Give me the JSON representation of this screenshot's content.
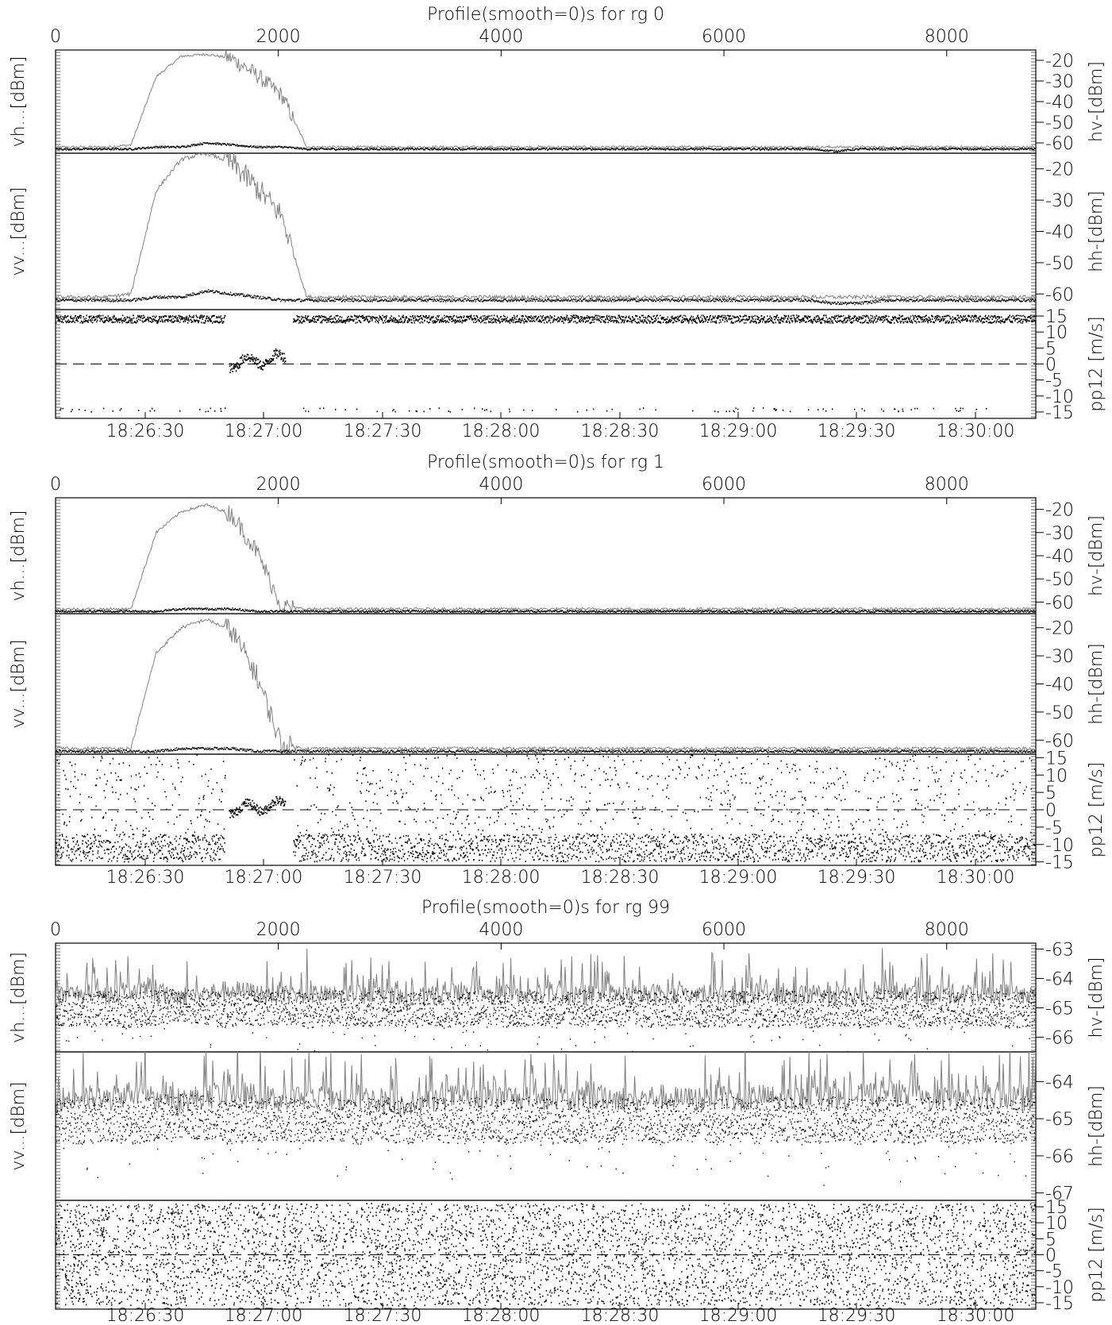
{
  "chart_data": [
    {
      "type": "scatter",
      "title": "Profile(smooth=0)s for rg 0",
      "top_axis": {
        "range": [
          0,
          8800
        ],
        "ticks": [
          "0",
          "2000",
          "4000",
          "6000",
          "8000"
        ],
        "tick_values": [
          0,
          2000,
          4000,
          6000,
          8000
        ]
      },
      "bottom_axis": {
        "range": [
          "18:26:13",
          "18:30:20"
        ],
        "ticks": [
          "18:26:30",
          "18:27:00",
          "18:27:30",
          "18:28:00",
          "18:28:30",
          "18:29:00",
          "18:29:30",
          "18:30:00"
        ]
      },
      "panels": [
        {
          "left_label": "vh...[dBm]",
          "right_label": "hv-[dBm]",
          "ylim": [
            -65,
            -15
          ],
          "ticks": [
            "-20",
            "-30",
            "-40",
            "-50",
            "-60"
          ],
          "tick_values": [
            -20,
            -30,
            -40,
            -50,
            -60
          ],
          "series": [
            {
              "style": "gray-line",
              "values": [
                -62,
                -62,
                -62,
                -61,
                -28,
                -18,
                -17,
                -19,
                -27,
                -37,
                -62,
                -62,
                -62,
                -62,
                -62,
                -62,
                -62,
                -62,
                -62,
                -62,
                -62,
                -62,
                -62,
                -62,
                -62,
                -62,
                -62,
                -62,
                -62,
                -62,
                -62,
                -62,
                -62,
                -62,
                -62,
                -62,
                -62,
                -62,
                -62,
                -62
              ]
            },
            {
              "style": "black-dots",
              "values": [
                -63,
                -63,
                -63,
                -63,
                -62,
                -62,
                -60,
                -61,
                -62,
                -62,
                -63,
                -63,
                -63,
                -63,
                -63,
                -63,
                -63,
                -63,
                -63,
                -63,
                -63,
                -63,
                -63,
                -63,
                -63,
                -63,
                -63,
                -63,
                -63,
                -63,
                -63,
                -64,
                -63,
                -63,
                -63,
                -63,
                -63,
                -63,
                -63,
                -63
              ]
            }
          ]
        },
        {
          "left_label": "vv...[dBm]",
          "right_label": "hh-[dBm]",
          "ylim": [
            -65,
            -15
          ],
          "ticks": [
            "-20",
            "-30",
            "-40",
            "-50",
            "-60"
          ],
          "tick_values": [
            -20,
            -30,
            -40,
            -50,
            -60
          ],
          "series": [
            {
              "style": "gray-line",
              "values": [
                -61,
                -61,
                -61,
                -60,
                -27,
                -17,
                -15,
                -18,
                -26,
                -35,
                -61,
                -61,
                -61,
                -61,
                -61,
                -61,
                -61,
                -61,
                -61,
                -61,
                -61,
                -61,
                -61,
                -61,
                -61,
                -61,
                -61,
                -61,
                -61,
                -61,
                -61,
                -61,
                -61,
                -61,
                -61,
                -61,
                -61,
                -61,
                -61,
                -61
              ]
            },
            {
              "style": "black-dots",
              "values": [
                -62,
                -62,
                -62,
                -62,
                -61,
                -61,
                -59,
                -60,
                -61,
                -62,
                -62,
                -62,
                -62,
                -62,
                -62,
                -62,
                -62,
                -62,
                -62,
                -62,
                -62,
                -62,
                -62,
                -62,
                -62,
                -62,
                -62,
                -62,
                -62,
                -62,
                -62,
                -63,
                -63,
                -62,
                -62,
                -62,
                -62,
                -62,
                -62,
                -62
              ]
            }
          ]
        },
        {
          "left_label": "",
          "right_label": "pp12 [m/s]",
          "ylim": [
            -17,
            17
          ],
          "ticks": [
            "15",
            "10",
            "5",
            "0",
            "-5",
            "-10",
            "-15"
          ],
          "tick_values": [
            15,
            10,
            5,
            0,
            -5,
            -10,
            -15
          ],
          "band_level": 14,
          "gap_level": 0,
          "dashed_zero": true
        }
      ]
    },
    {
      "type": "scatter",
      "title": "Profile(smooth=0)s for rg 1",
      "top_axis": {
        "range": [
          0,
          8800
        ],
        "ticks": [
          "0",
          "2000",
          "4000",
          "6000",
          "8000"
        ],
        "tick_values": [
          0,
          2000,
          4000,
          6000,
          8000
        ]
      },
      "bottom_axis": {
        "range": [
          "18:26:13",
          "18:30:20"
        ],
        "ticks": [
          "18:26:30",
          "18:27:00",
          "18:27:30",
          "18:28:00",
          "18:28:30",
          "18:29:00",
          "18:29:30",
          "18:30:00"
        ]
      },
      "panels": [
        {
          "left_label": "vh...[dBm]",
          "right_label": "hv-[dBm]",
          "ylim": [
            -65,
            -15
          ],
          "ticks": [
            "-20",
            "-30",
            "-40",
            "-50",
            "-60"
          ],
          "tick_values": [
            -20,
            -30,
            -40,
            -50,
            -60
          ],
          "series": [
            {
              "style": "gray-line",
              "values": [
                -63,
                -63,
                -63,
                -63,
                -30,
                -21,
                -18,
                -22,
                -38,
                -62,
                -63,
                -63,
                -63,
                -63,
                -63,
                -63,
                -63,
                -63,
                -63,
                -63,
                -63,
                -63,
                -63,
                -63,
                -63,
                -63,
                -63,
                -63,
                -63,
                -63,
                -63,
                -63,
                -63,
                -63,
                -63,
                -63,
                -63,
                -63,
                -63,
                -63
              ]
            },
            {
              "style": "black-dots",
              "values": [
                -64,
                -64,
                -64,
                -64,
                -64,
                -63,
                -63,
                -63,
                -64,
                -64,
                -64,
                -64,
                -64,
                -64,
                -64,
                -64,
                -64,
                -64,
                -64,
                -64,
                -64,
                -64,
                -64,
                -64,
                -64,
                -64,
                -64,
                -64,
                -64,
                -64,
                -64,
                -64,
                -64,
                -64,
                -64,
                -64,
                -64,
                -64,
                -64,
                -64
              ]
            }
          ]
        },
        {
          "left_label": "vv...[dBm]",
          "right_label": "hh-[dBm]",
          "ylim": [
            -65,
            -15
          ],
          "ticks": [
            "-20",
            "-30",
            "-40",
            "-50",
            "-60"
          ],
          "tick_values": [
            -20,
            -30,
            -40,
            -50,
            -60
          ],
          "series": [
            {
              "style": "gray-line",
              "values": [
                -63,
                -63,
                -63,
                -63,
                -29,
                -20,
                -17,
                -21,
                -37,
                -62,
                -63,
                -63,
                -63,
                -63,
                -63,
                -63,
                -63,
                -63,
                -63,
                -63,
                -63,
                -63,
                -63,
                -63,
                -63,
                -63,
                -63,
                -63,
                -63,
                -63,
                -63,
                -63,
                -63,
                -63,
                -63,
                -63,
                -63,
                -63,
                -63,
                -63
              ]
            },
            {
              "style": "black-dots",
              "values": [
                -64,
                -64,
                -64,
                -64,
                -64,
                -63,
                -63,
                -63,
                -64,
                -64,
                -64,
                -64,
                -64,
                -64,
                -64,
                -64,
                -64,
                -64,
                -64,
                -64,
                -64,
                -64,
                -64,
                -64,
                -64,
                -64,
                -64,
                -64,
                -64,
                -64,
                -64,
                -64,
                -64,
                -64,
                -64,
                -64,
                -64,
                -64,
                -64,
                -64
              ]
            }
          ]
        },
        {
          "left_label": "",
          "right_label": "pp12 [m/s]",
          "ylim": [
            -16,
            16
          ],
          "ticks": [
            "15",
            "10",
            "5",
            "0",
            "-5",
            "-10",
            "-15"
          ],
          "tick_values": [
            15,
            10,
            5,
            0,
            -5,
            -10,
            -15
          ],
          "band_level": -11,
          "gap_level": 0,
          "dashed_zero": true
        }
      ]
    },
    {
      "type": "scatter",
      "title": "Profile(smooth=0)s for rg 99",
      "top_axis": {
        "range": [
          0,
          8800
        ],
        "ticks": [
          "0",
          "2000",
          "4000",
          "6000",
          "8000"
        ],
        "tick_values": [
          0,
          2000,
          4000,
          6000,
          8000
        ]
      },
      "bottom_axis": {
        "range": [
          "18:26:13",
          "18:30:20"
        ],
        "ticks": [
          "18:26:30",
          "18:27:00",
          "18:27:30",
          "18:28:00",
          "18:28:30",
          "18:29:00",
          "18:29:30",
          "18:30:00"
        ]
      },
      "panels": [
        {
          "left_label": "vh...[dBm]",
          "right_label": "hv-[dBm]",
          "ylim": [
            -66.5,
            -62.8
          ],
          "ticks": [
            "-63",
            "-64",
            "-65",
            "-66"
          ],
          "tick_values": [
            -63,
            -64,
            -65,
            -66
          ],
          "series": [
            {
              "style": "gray-line",
              "values": [
                -64.6,
                -64.5,
                -64.6,
                -64.4,
                -64.5,
                -64.6,
                -64.5,
                -64.4,
                -64.5,
                -64.6,
                -64.5,
                -64.6,
                -64.5,
                -64.6,
                -64.7,
                -64.6,
                -64.5,
                -64.6,
                -64.5,
                -64.6,
                -64.5,
                -64.6,
                -64.5,
                -64.6,
                -64.5,
                -64.6,
                -64.5,
                -64.6,
                -64.5,
                -64.6,
                -64.5,
                -64.6,
                -64.5,
                -64.4,
                -64.5,
                -64.6,
                -64.5,
                -64.6,
                -64.5,
                -64.6
              ]
            },
            {
              "style": "black-dots",
              "values": [
                -65.0,
                -65.1,
                -65.0,
                -65.1,
                -65.0,
                -64.9,
                -65.0,
                -65.1,
                -65.0,
                -65.0,
                -65.1,
                -65.0,
                -65.1,
                -65.0,
                -65.1,
                -65.0,
                -65.1,
                -65.0,
                -65.1,
                -65.0,
                -65.1,
                -65.0,
                -65.1,
                -65.0,
                -65.1,
                -65.0,
                -65.1,
                -65.0,
                -65.1,
                -65.0,
                -65.1,
                -65.0,
                -65.1,
                -65.0,
                -65.1,
                -65.0,
                -65.1,
                -65.0,
                -65.1,
                -65.0
              ]
            }
          ]
        },
        {
          "left_label": "vv...[dBm]",
          "right_label": "hh-[dBm]",
          "ylim": [
            -67.2,
            -63.2
          ],
          "ticks": [
            "-64",
            "-65",
            "-66",
            "-67"
          ],
          "tick_values": [
            -64,
            -65,
            -66,
            -67
          ],
          "series": [
            {
              "style": "gray-line",
              "values": [
                -64.5,
                -64.4,
                -64.5,
                -64.3,
                -64.4,
                -64.5,
                -64.4,
                -64.3,
                -64.4,
                -64.5,
                -64.4,
                -64.5,
                -64.4,
                -64.5,
                -64.6,
                -64.5,
                -64.4,
                -64.5,
                -64.4,
                -64.5,
                -64.4,
                -64.5,
                -64.4,
                -64.5,
                -64.4,
                -64.5,
                -64.4,
                -64.5,
                -64.4,
                -64.5,
                -64.4,
                -64.5,
                -64.4,
                -64.3,
                -64.4,
                -64.5,
                -64.4,
                -64.5,
                -64.4,
                -64.5
              ]
            },
            {
              "style": "black-dots",
              "values": [
                -65.0,
                -65.1,
                -65.0,
                -65.1,
                -65.0,
                -64.9,
                -65.0,
                -65.1,
                -65.0,
                -65.0,
                -65.1,
                -65.0,
                -65.1,
                -65.0,
                -65.1,
                -65.0,
                -65.1,
                -65.0,
                -65.1,
                -65.0,
                -65.1,
                -65.0,
                -65.1,
                -65.0,
                -65.1,
                -65.0,
                -65.1,
                -65.0,
                -65.1,
                -65.0,
                -65.1,
                -65.0,
                -65.1,
                -65.0,
                -65.1,
                -65.0,
                -65.1,
                -65.0,
                -65.1,
                -65.0
              ]
            }
          ]
        },
        {
          "left_label": "",
          "right_label": "pp12 [m/s]",
          "ylim": [
            -17,
            17
          ],
          "ticks": [
            "15",
            "10",
            "5",
            "0",
            "-5",
            "-10",
            "-15"
          ],
          "tick_values": [
            15,
            10,
            5,
            0,
            -5,
            -10,
            -15
          ],
          "uniform": true,
          "dashed_zero": true
        }
      ]
    }
  ]
}
